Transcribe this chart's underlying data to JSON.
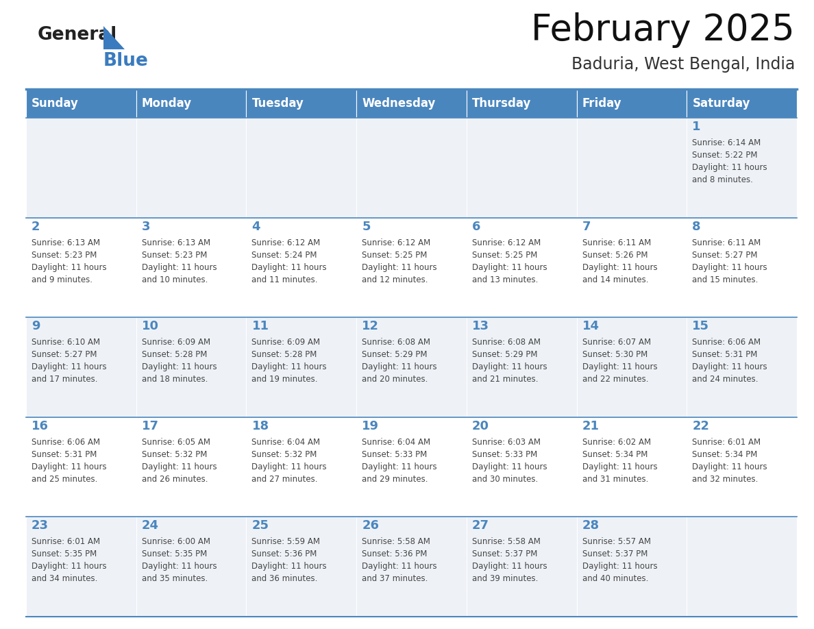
{
  "title": "February 2025",
  "subtitle": "Baduria, West Bengal, India",
  "header_bg": "#4a86be",
  "header_text_color": "#ffffff",
  "cell_bg_light": "#eef2f7",
  "cell_bg_white": "#ffffff",
  "day_number_color": "#4a86be",
  "text_color": "#444444",
  "line_color": "#4a86be",
  "logo_general_color": "#222222",
  "logo_blue_color": "#3a7bbf",
  "logo_triangle_color": "#3a7bbf",
  "days_of_week": [
    "Sunday",
    "Monday",
    "Tuesday",
    "Wednesday",
    "Thursday",
    "Friday",
    "Saturday"
  ],
  "calendar_data": [
    [
      null,
      null,
      null,
      null,
      null,
      null,
      {
        "day": 1,
        "sunrise": "6:14 AM",
        "sunset": "5:22 PM",
        "daylight": "11 hours\nand 8 minutes."
      }
    ],
    [
      {
        "day": 2,
        "sunrise": "6:13 AM",
        "sunset": "5:23 PM",
        "daylight": "11 hours\nand 9 minutes."
      },
      {
        "day": 3,
        "sunrise": "6:13 AM",
        "sunset": "5:23 PM",
        "daylight": "11 hours\nand 10 minutes."
      },
      {
        "day": 4,
        "sunrise": "6:12 AM",
        "sunset": "5:24 PM",
        "daylight": "11 hours\nand 11 minutes."
      },
      {
        "day": 5,
        "sunrise": "6:12 AM",
        "sunset": "5:25 PM",
        "daylight": "11 hours\nand 12 minutes."
      },
      {
        "day": 6,
        "sunrise": "6:12 AM",
        "sunset": "5:25 PM",
        "daylight": "11 hours\nand 13 minutes."
      },
      {
        "day": 7,
        "sunrise": "6:11 AM",
        "sunset": "5:26 PM",
        "daylight": "11 hours\nand 14 minutes."
      },
      {
        "day": 8,
        "sunrise": "6:11 AM",
        "sunset": "5:27 PM",
        "daylight": "11 hours\nand 15 minutes."
      }
    ],
    [
      {
        "day": 9,
        "sunrise": "6:10 AM",
        "sunset": "5:27 PM",
        "daylight": "11 hours\nand 17 minutes."
      },
      {
        "day": 10,
        "sunrise": "6:09 AM",
        "sunset": "5:28 PM",
        "daylight": "11 hours\nand 18 minutes."
      },
      {
        "day": 11,
        "sunrise": "6:09 AM",
        "sunset": "5:28 PM",
        "daylight": "11 hours\nand 19 minutes."
      },
      {
        "day": 12,
        "sunrise": "6:08 AM",
        "sunset": "5:29 PM",
        "daylight": "11 hours\nand 20 minutes."
      },
      {
        "day": 13,
        "sunrise": "6:08 AM",
        "sunset": "5:29 PM",
        "daylight": "11 hours\nand 21 minutes."
      },
      {
        "day": 14,
        "sunrise": "6:07 AM",
        "sunset": "5:30 PM",
        "daylight": "11 hours\nand 22 minutes."
      },
      {
        "day": 15,
        "sunrise": "6:06 AM",
        "sunset": "5:31 PM",
        "daylight": "11 hours\nand 24 minutes."
      }
    ],
    [
      {
        "day": 16,
        "sunrise": "6:06 AM",
        "sunset": "5:31 PM",
        "daylight": "11 hours\nand 25 minutes."
      },
      {
        "day": 17,
        "sunrise": "6:05 AM",
        "sunset": "5:32 PM",
        "daylight": "11 hours\nand 26 minutes."
      },
      {
        "day": 18,
        "sunrise": "6:04 AM",
        "sunset": "5:32 PM",
        "daylight": "11 hours\nand 27 minutes."
      },
      {
        "day": 19,
        "sunrise": "6:04 AM",
        "sunset": "5:33 PM",
        "daylight": "11 hours\nand 29 minutes."
      },
      {
        "day": 20,
        "sunrise": "6:03 AM",
        "sunset": "5:33 PM",
        "daylight": "11 hours\nand 30 minutes."
      },
      {
        "day": 21,
        "sunrise": "6:02 AM",
        "sunset": "5:34 PM",
        "daylight": "11 hours\nand 31 minutes."
      },
      {
        "day": 22,
        "sunrise": "6:01 AM",
        "sunset": "5:34 PM",
        "daylight": "11 hours\nand 32 minutes."
      }
    ],
    [
      {
        "day": 23,
        "sunrise": "6:01 AM",
        "sunset": "5:35 PM",
        "daylight": "11 hours\nand 34 minutes."
      },
      {
        "day": 24,
        "sunrise": "6:00 AM",
        "sunset": "5:35 PM",
        "daylight": "11 hours\nand 35 minutes."
      },
      {
        "day": 25,
        "sunrise": "5:59 AM",
        "sunset": "5:36 PM",
        "daylight": "11 hours\nand 36 minutes."
      },
      {
        "day": 26,
        "sunrise": "5:58 AM",
        "sunset": "5:36 PM",
        "daylight": "11 hours\nand 37 minutes."
      },
      {
        "day": 27,
        "sunrise": "5:58 AM",
        "sunset": "5:37 PM",
        "daylight": "11 hours\nand 39 minutes."
      },
      {
        "day": 28,
        "sunrise": "5:57 AM",
        "sunset": "5:37 PM",
        "daylight": "11 hours\nand 40 minutes."
      },
      null
    ]
  ],
  "fig_width": 11.88,
  "fig_height": 9.18,
  "dpi": 100
}
